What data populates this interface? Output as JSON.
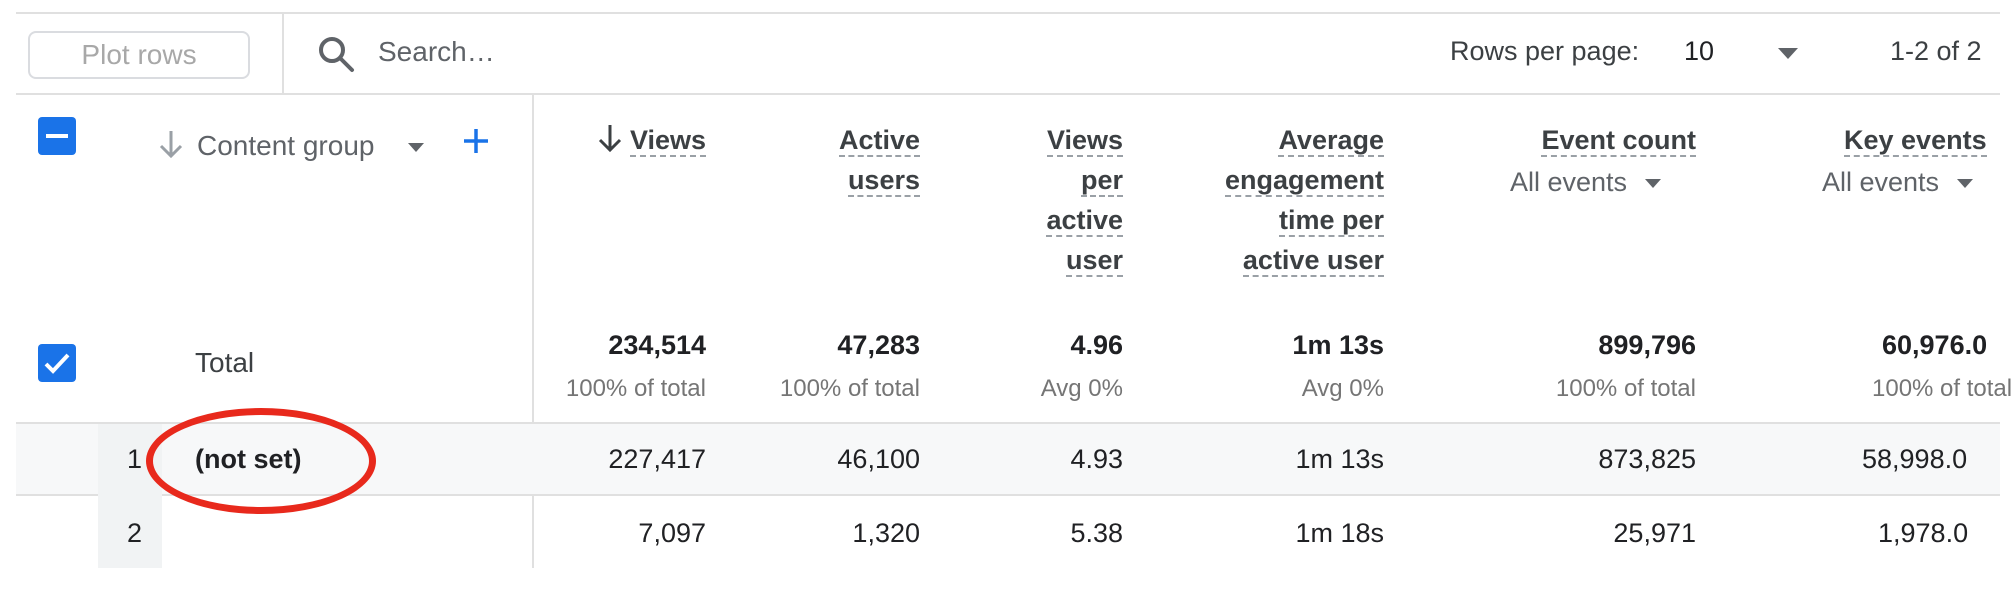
{
  "toolbar": {
    "plot_rows_label": "Plot rows",
    "search_placeholder": "Search…",
    "rows_per_page_label": "Rows per page:",
    "rows_per_page_value": "10",
    "page_info": "1-2 of 2"
  },
  "dimension": {
    "label": "Content group",
    "icons": [
      "sort-arrow-down-icon",
      "chevron-down-icon",
      "plus-icon"
    ]
  },
  "metrics": [
    {
      "lines": [
        "Views"
      ],
      "sorted": true
    },
    {
      "lines": [
        "Active",
        "users"
      ]
    },
    {
      "lines": [
        "Views",
        "per",
        "active",
        "user"
      ]
    },
    {
      "lines": [
        "Average",
        "engagement",
        "time per",
        "active user"
      ]
    },
    {
      "lines": [
        "Event count"
      ],
      "selector": "All events"
    },
    {
      "lines": [
        "Key events"
      ],
      "selector": "All events"
    }
  ],
  "totals": {
    "label": "Total",
    "values": [
      "234,514",
      "47,283",
      "4.96",
      "1m 13s",
      "899,796",
      "60,976.0"
    ],
    "subs": [
      "100% of total",
      "100% of total",
      "Avg 0%",
      "Avg 0%",
      "100% of total",
      "100% of total"
    ]
  },
  "rows": [
    {
      "index": "1",
      "label": "(not set)",
      "values": [
        "227,417",
        "46,100",
        "4.93",
        "1m 13s",
        "873,825",
        "58,998.0"
      ]
    },
    {
      "index": "2",
      "label": "",
      "values": [
        "7,097",
        "1,320",
        "5.38",
        "1m 18s",
        "25,971",
        "1,978.0"
      ]
    }
  ],
  "colors": {
    "accent": "#1a73e8",
    "highlight": "#e8291c"
  }
}
